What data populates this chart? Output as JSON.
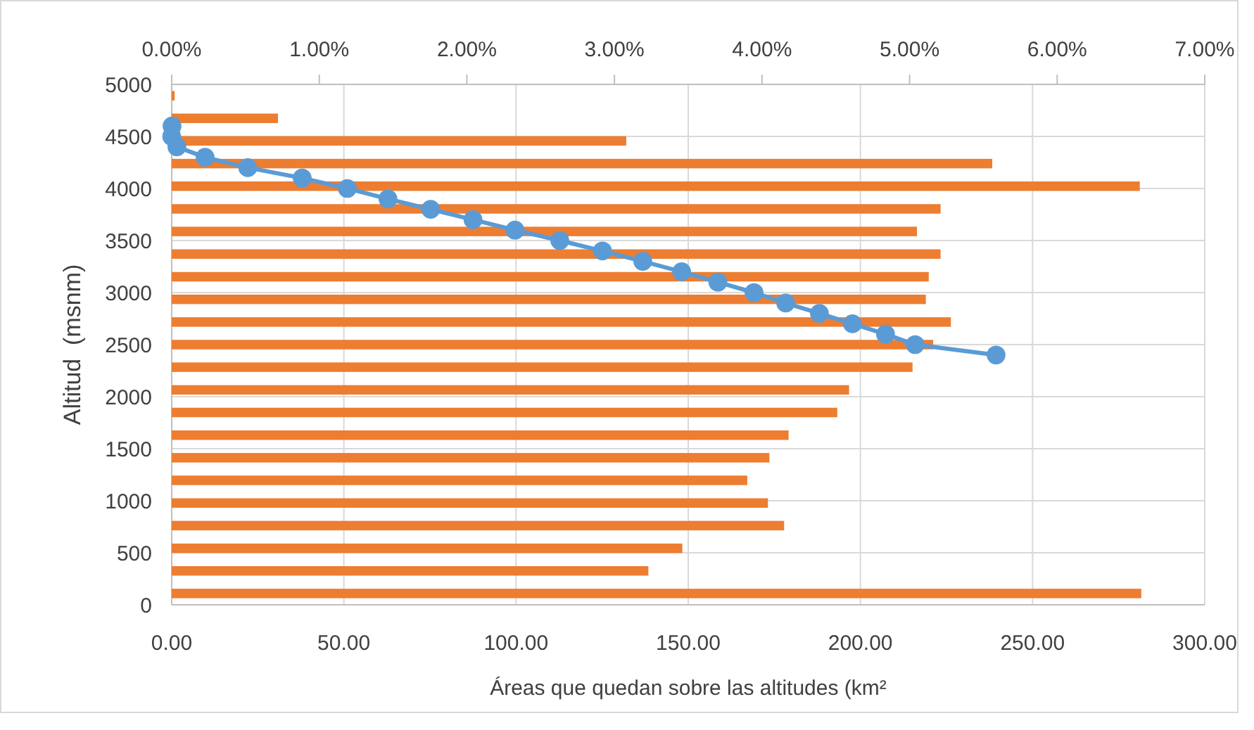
{
  "chart_data": {
    "type": "bar",
    "orientation": "horizontal",
    "xlabel": "Áreas que quedan sobre las altitudes (km²",
    "ylabel": "Altitud  (msnm)",
    "xlim": [
      0,
      300
    ],
    "xticks": [
      {
        "value": 0,
        "label": "0.00"
      },
      {
        "value": 50,
        "label": "50.00"
      },
      {
        "value": 100,
        "label": "100.00"
      },
      {
        "value": 150,
        "label": "150.00"
      },
      {
        "value": 200,
        "label": "200.00"
      },
      {
        "value": 250,
        "label": "250.00"
      },
      {
        "value": 300,
        "label": "300.00"
      }
    ],
    "x2lim": [
      0,
      7
    ],
    "x2ticks": [
      {
        "value": 0,
        "label": "0.00%"
      },
      {
        "value": 1,
        "label": "1.00%"
      },
      {
        "value": 2,
        "label": "2.00%"
      },
      {
        "value": 3,
        "label": "3.00%"
      },
      {
        "value": 4,
        "label": "4.00%"
      },
      {
        "value": 5,
        "label": "5.00%"
      },
      {
        "value": 6,
        "label": "6.00%"
      },
      {
        "value": 7,
        "label": "7.00%"
      }
    ],
    "ylim": [
      0,
      5000
    ],
    "yticks": [
      0,
      500,
      1000,
      1500,
      2000,
      2500,
      3000,
      3500,
      4000,
      4500,
      5000
    ],
    "grid": true,
    "marker": "circle",
    "series": [
      {
        "axis": "x2",
        "color": "#ed7d31",
        "x": [
          109,
          326,
          543,
          761,
          978,
          1196,
          1413,
          1630,
          1848,
          2065,
          2283,
          2500,
          2717,
          2935,
          3152,
          3370,
          3587,
          3804,
          4022,
          4239,
          4457,
          4674,
          4891
        ],
        "values": [
          6.57,
          3.23,
          3.46,
          4.15,
          4.04,
          3.9,
          4.05,
          4.18,
          4.51,
          4.59,
          5.02,
          5.16,
          5.28,
          5.11,
          5.13,
          5.21,
          5.05,
          5.21,
          6.56,
          5.56,
          3.08,
          0.72,
          0.02
        ]
      },
      {
        "type": "line",
        "color": "#5b9bd5",
        "x": [
          4600,
          4500,
          4400,
          4300,
          4200,
          4100,
          4000,
          3900,
          3800,
          3700,
          3600,
          3500,
          3400,
          3300,
          3200,
          3100,
          3000,
          2900,
          2800,
          2700,
          2600,
          2500,
          2400
        ],
        "values": [
          0.1,
          0,
          1.5,
          9.7,
          22.1,
          37.9,
          51.0,
          62.8,
          75.2,
          87.5,
          99.7,
          112.7,
          125.1,
          136.8,
          148.1,
          158.6,
          169.1,
          178.3,
          188.1,
          197.7,
          207.3,
          215.9,
          239.4
        ]
      }
    ]
  }
}
